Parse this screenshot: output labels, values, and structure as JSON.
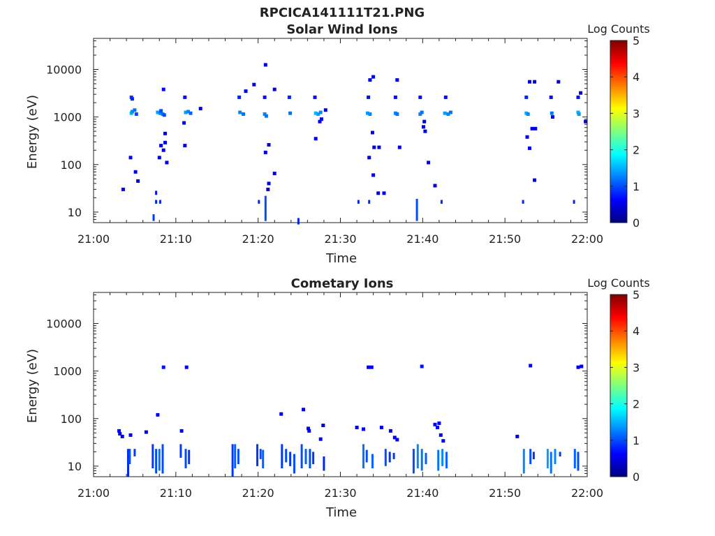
{
  "figure": {
    "title": "RPCICA141111T21.PNG"
  },
  "colormap": [
    "#00007f",
    "#0000ff",
    "#007fff",
    "#00ffff",
    "#7fff7f",
    "#ffff00",
    "#ff7f00",
    "#ff0000",
    "#7f0000"
  ],
  "chart_data": [
    {
      "type": "heatmap",
      "title": "Solar Wind Ions",
      "xlabel": "Time",
      "ylabel": "Energy (eV)",
      "x_unit": "minutes after 21:00",
      "xlim": [
        0,
        60
      ],
      "x_ticks": [
        "21:00",
        "21:10",
        "21:20",
        "21:30",
        "21:40",
        "21:50",
        "22:00"
      ],
      "y_scale": "log",
      "ylim": [
        6,
        45000
      ],
      "y_ticks": [
        "10",
        "100",
        "1000",
        "10000"
      ],
      "colorbar": {
        "label": "Log Counts",
        "range": [
          0,
          5
        ],
        "ticks": [
          "0",
          "1",
          "2",
          "3",
          "4",
          "5"
        ]
      },
      "points": [
        [
          4.6,
          1200,
          1.5
        ],
        [
          4.7,
          1300,
          1.3
        ],
        [
          5.0,
          1400,
          1.2
        ],
        [
          5.2,
          1150,
          1.0
        ],
        [
          4.6,
          2600,
          0.9
        ],
        [
          4.7,
          2400,
          0.8
        ],
        [
          7.8,
          1250,
          1.4
        ],
        [
          8.1,
          1200,
          1.3
        ],
        [
          8.4,
          1150,
          1.2
        ],
        [
          8.6,
          1100,
          1.0
        ],
        [
          8.2,
          1350,
          1.0
        ],
        [
          8.5,
          3800,
          0.6
        ],
        [
          11.2,
          1250,
          1.4
        ],
        [
          11.5,
          1300,
          1.3
        ],
        [
          11.8,
          1200,
          1.1
        ],
        [
          11.1,
          2600,
          0.7
        ],
        [
          13.0,
          1500,
          0.6
        ],
        [
          17.8,
          1250,
          1.3
        ],
        [
          18.2,
          1150,
          1.2
        ],
        [
          17.7,
          2600,
          0.8
        ],
        [
          18.5,
          3500,
          0.5
        ],
        [
          19.5,
          4800,
          0.5
        ],
        [
          20.8,
          1150,
          1.3
        ],
        [
          21.0,
          1050,
          1.2
        ],
        [
          20.8,
          2600,
          0.7
        ],
        [
          20.9,
          12500,
          0.5
        ],
        [
          22.0,
          3800,
          0.5
        ],
        [
          23.9,
          1200,
          1.2
        ],
        [
          23.8,
          2600,
          0.8
        ],
        [
          27.0,
          1200,
          1.5
        ],
        [
          27.3,
          1150,
          1.4
        ],
        [
          27.6,
          1250,
          1.3
        ],
        [
          26.9,
          2600,
          0.7
        ],
        [
          28.2,
          1400,
          0.5
        ],
        [
          33.3,
          1200,
          1.4
        ],
        [
          33.6,
          1150,
          1.3
        ],
        [
          33.4,
          2600,
          0.7
        ],
        [
          34.0,
          7000,
          0.5
        ],
        [
          33.6,
          6000,
          0.5
        ],
        [
          36.7,
          1200,
          1.3
        ],
        [
          36.9,
          1150,
          1.2
        ],
        [
          36.7,
          2600,
          0.7
        ],
        [
          36.9,
          6000,
          0.5
        ],
        [
          39.7,
          1150,
          1.3
        ],
        [
          39.9,
          1250,
          1.2
        ],
        [
          39.7,
          2600,
          0.7
        ],
        [
          40.2,
          800,
          0.5
        ],
        [
          42.7,
          1200,
          1.4
        ],
        [
          43.1,
          1150,
          1.3
        ],
        [
          43.4,
          1250,
          1.2
        ],
        [
          42.8,
          2600,
          0.7
        ],
        [
          52.6,
          1200,
          1.5
        ],
        [
          52.8,
          1150,
          1.3
        ],
        [
          52.6,
          2600,
          0.8
        ],
        [
          53.0,
          5500,
          0.5
        ],
        [
          53.6,
          5500,
          0.5
        ],
        [
          55.7,
          1200,
          1.2
        ],
        [
          55.6,
          2600,
          0.7
        ],
        [
          56.5,
          5500,
          0.5
        ],
        [
          58.9,
          1250,
          1.5
        ],
        [
          59.0,
          1150,
          1.4
        ],
        [
          58.9,
          2600,
          0.7
        ],
        [
          59.2,
          3200,
          0.5
        ],
        [
          59.8,
          800,
          0.5
        ],
        [
          3.6,
          30,
          0.6
        ],
        [
          4.5,
          140,
          0.6
        ],
        [
          5.4,
          45,
          0.5
        ],
        [
          5.1,
          70,
          0.5
        ],
        [
          8.2,
          250,
          0.5
        ],
        [
          8.5,
          200,
          0.5
        ],
        [
          8.7,
          290,
          0.5
        ],
        [
          8.9,
          110,
          0.5
        ],
        [
          8.0,
          140,
          0.5
        ],
        [
          8.7,
          450,
          0.5
        ],
        [
          11.1,
          250,
          0.5
        ],
        [
          11.0,
          750,
          0.5
        ],
        [
          20.9,
          180,
          0.5
        ],
        [
          21.3,
          260,
          0.5
        ],
        [
          22.0,
          65,
          0.5
        ],
        [
          21.3,
          40,
          0.5
        ],
        [
          21.2,
          30,
          0.6
        ],
        [
          27.0,
          350,
          0.5
        ],
        [
          27.5,
          800,
          0.5
        ],
        [
          27.7,
          900,
          0.5
        ],
        [
          33.5,
          140,
          0.5
        ],
        [
          34.1,
          230,
          0.5
        ],
        [
          34.7,
          230,
          0.5
        ],
        [
          33.9,
          470,
          0.5
        ],
        [
          34.0,
          60,
          0.5
        ],
        [
          34.6,
          25,
          0.5
        ],
        [
          35.3,
          25,
          0.5
        ],
        [
          37.2,
          230,
          0.5
        ],
        [
          40.1,
          620,
          0.5
        ],
        [
          40.3,
          500,
          0.5
        ],
        [
          40.7,
          110,
          0.5
        ],
        [
          41.5,
          36,
          0.5
        ],
        [
          52.7,
          380,
          0.5
        ],
        [
          53.0,
          220,
          0.5
        ],
        [
          53.3,
          570,
          0.5
        ],
        [
          53.7,
          570,
          0.5
        ],
        [
          53.6,
          47,
          0.5
        ],
        [
          55.8,
          1000,
          0.6
        ]
      ],
      "bursts": [
        [
          7.3,
          6.5,
          9,
          0.9
        ],
        [
          7.6,
          15,
          18,
          0.8
        ],
        [
          8.1,
          15,
          18,
          0.8
        ],
        [
          7.6,
          23,
          28,
          0.7
        ],
        [
          20.1,
          15,
          18,
          0.8
        ],
        [
          20.9,
          6.5,
          22,
          1.0
        ],
        [
          24.9,
          5.5,
          7.5,
          0.8
        ],
        [
          32.2,
          15,
          18,
          0.8
        ],
        [
          33.5,
          15,
          18,
          0.8
        ],
        [
          39.3,
          6.5,
          19,
          1.0
        ],
        [
          42.3,
          15,
          18,
          0.8
        ],
        [
          52.2,
          15,
          18,
          0.8
        ],
        [
          58.4,
          15,
          18,
          0.8
        ]
      ]
    },
    {
      "type": "heatmap",
      "title": "Cometary Ions",
      "xlabel": "Time",
      "ylabel": "Energy (eV)",
      "x_unit": "minutes after 21:00",
      "xlim": [
        0,
        60
      ],
      "x_ticks": [
        "21:00",
        "21:10",
        "21:20",
        "21:30",
        "21:40",
        "21:50",
        "22:00"
      ],
      "y_scale": "log",
      "ylim": [
        6,
        45000
      ],
      "y_ticks": [
        "10",
        "100",
        "1000",
        "10000"
      ],
      "colorbar": {
        "label": "Log Counts",
        "range": [
          0,
          5
        ],
        "ticks": [
          "0",
          "1",
          "2",
          "3",
          "4",
          "5"
        ]
      },
      "points": [
        [
          8.5,
          1200,
          0.7
        ],
        [
          11.3,
          1200,
          0.6
        ],
        [
          33.4,
          1200,
          0.6
        ],
        [
          33.8,
          1200,
          0.6
        ],
        [
          39.9,
          1250,
          0.7
        ],
        [
          53.1,
          1300,
          0.6
        ],
        [
          58.9,
          1200,
          0.6
        ],
        [
          59.3,
          1250,
          0.6
        ],
        [
          3.1,
          55,
          0.6
        ],
        [
          3.2,
          48,
          0.6
        ],
        [
          3.5,
          42,
          0.6
        ],
        [
          4.5,
          45,
          0.6
        ],
        [
          6.4,
          52,
          0.6
        ],
        [
          7.8,
          120,
          0.6
        ],
        [
          10.7,
          55,
          0.6
        ],
        [
          22.8,
          125,
          0.6
        ],
        [
          25.5,
          155,
          0.5
        ],
        [
          26.1,
          62,
          0.6
        ],
        [
          26.2,
          55,
          0.6
        ],
        [
          27.6,
          37,
          0.6
        ],
        [
          27.9,
          72,
          0.5
        ],
        [
          32.0,
          65,
          0.5
        ],
        [
          32.8,
          60,
          0.6
        ],
        [
          35.0,
          65,
          0.5
        ],
        [
          36.1,
          55,
          0.6
        ],
        [
          36.6,
          40,
          0.6
        ],
        [
          36.9,
          36,
          0.6
        ],
        [
          41.5,
          75,
          0.6
        ],
        [
          41.8,
          65,
          0.6
        ],
        [
          42.0,
          80,
          0.6
        ],
        [
          42.2,
          45,
          0.6
        ],
        [
          42.5,
          34,
          0.6
        ],
        [
          51.5,
          42,
          0.6
        ]
      ],
      "bursts": [
        [
          4.2,
          6,
          23,
          0.8
        ],
        [
          4.4,
          11,
          23,
          1.0
        ],
        [
          5.0,
          16,
          23,
          0.9
        ],
        [
          7.2,
          9,
          29,
          0.9
        ],
        [
          7.6,
          7,
          23,
          1.0
        ],
        [
          8.0,
          8,
          23,
          1.2
        ],
        [
          8.4,
          7,
          29,
          1.0
        ],
        [
          10.6,
          15,
          29,
          0.9
        ],
        [
          11.2,
          9,
          23,
          1.0
        ],
        [
          11.6,
          11,
          22,
          0.9
        ],
        [
          16.9,
          6,
          29,
          0.9
        ],
        [
          17.2,
          9,
          29,
          1.1
        ],
        [
          17.6,
          11,
          23,
          1.0
        ],
        [
          19.9,
          10,
          29,
          0.9
        ],
        [
          20.3,
          14,
          23,
          1.0
        ],
        [
          20.6,
          9,
          22,
          1.1
        ],
        [
          22.9,
          9,
          29,
          0.9
        ],
        [
          23.4,
          12,
          23,
          1.0
        ],
        [
          23.9,
          10,
          20,
          0.9
        ],
        [
          24.4,
          7,
          18,
          1.0
        ],
        [
          25.3,
          9,
          29,
          1.0
        ],
        [
          25.8,
          11,
          23,
          1.1
        ],
        [
          26.3,
          9,
          23,
          1.0
        ],
        [
          26.7,
          11,
          20,
          0.9
        ],
        [
          28.0,
          8,
          16,
          0.8
        ],
        [
          32.8,
          9,
          29,
          1.2
        ],
        [
          33.2,
          12,
          22,
          1.0
        ],
        [
          33.9,
          9,
          18,
          1.1
        ],
        [
          35.5,
          10,
          23,
          1.0
        ],
        [
          36.0,
          12,
          20,
          0.9
        ],
        [
          36.5,
          14,
          19,
          0.9
        ],
        [
          38.9,
          7,
          23,
          1.0
        ],
        [
          39.4,
          9,
          29,
          1.3
        ],
        [
          39.9,
          8,
          23,
          1.2
        ],
        [
          40.4,
          11,
          19,
          1.1
        ],
        [
          41.9,
          8,
          22,
          1.2
        ],
        [
          42.4,
          10,
          23,
          1.3
        ],
        [
          42.9,
          9,
          20,
          1.1
        ],
        [
          52.3,
          7,
          23,
          1.3
        ],
        [
          53.1,
          11,
          23,
          1.0
        ],
        [
          53.5,
          14,
          20,
          0.9
        ],
        [
          55.2,
          9,
          23,
          1.4
        ],
        [
          55.6,
          7,
          20,
          1.2
        ],
        [
          56.1,
          11,
          23,
          1.3
        ],
        [
          56.7,
          16,
          20,
          0.9
        ],
        [
          58.5,
          9,
          23,
          1.1
        ],
        [
          58.9,
          8,
          20,
          1.0
        ]
      ]
    }
  ]
}
